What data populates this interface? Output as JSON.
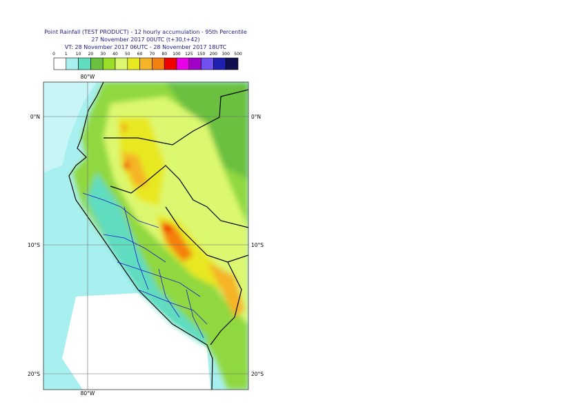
{
  "header": {
    "lines": [
      "Point Rainfall (TEST PRODUCT) - 12 hourly accumulation - 95th Percentile",
      "27 November 2017 00UTC (t+30,t+42)",
      "VT: 28 November 2017 06UTC - 28 November 2017 18UTC"
    ]
  },
  "colorbar": {
    "labels": [
      0,
      1,
      10,
      20,
      30,
      40,
      50,
      60,
      70,
      80,
      100,
      125,
      150,
      200,
      300,
      500
    ],
    "colors": [
      "#ffffff",
      "#a8f0f0",
      "#60dcc0",
      "#6cc040",
      "#9ade2a",
      "#dcf870",
      "#e8e820",
      "#f4b428",
      "#f48010",
      "#f00000",
      "#e800e8",
      "#a000c8",
      "#7050f0",
      "#2020b0",
      "#101050"
    ]
  },
  "map": {
    "lon_labels": [
      "80°W"
    ],
    "lat_labels": [
      "0°N",
      "10°S",
      "20°S"
    ]
  }
}
